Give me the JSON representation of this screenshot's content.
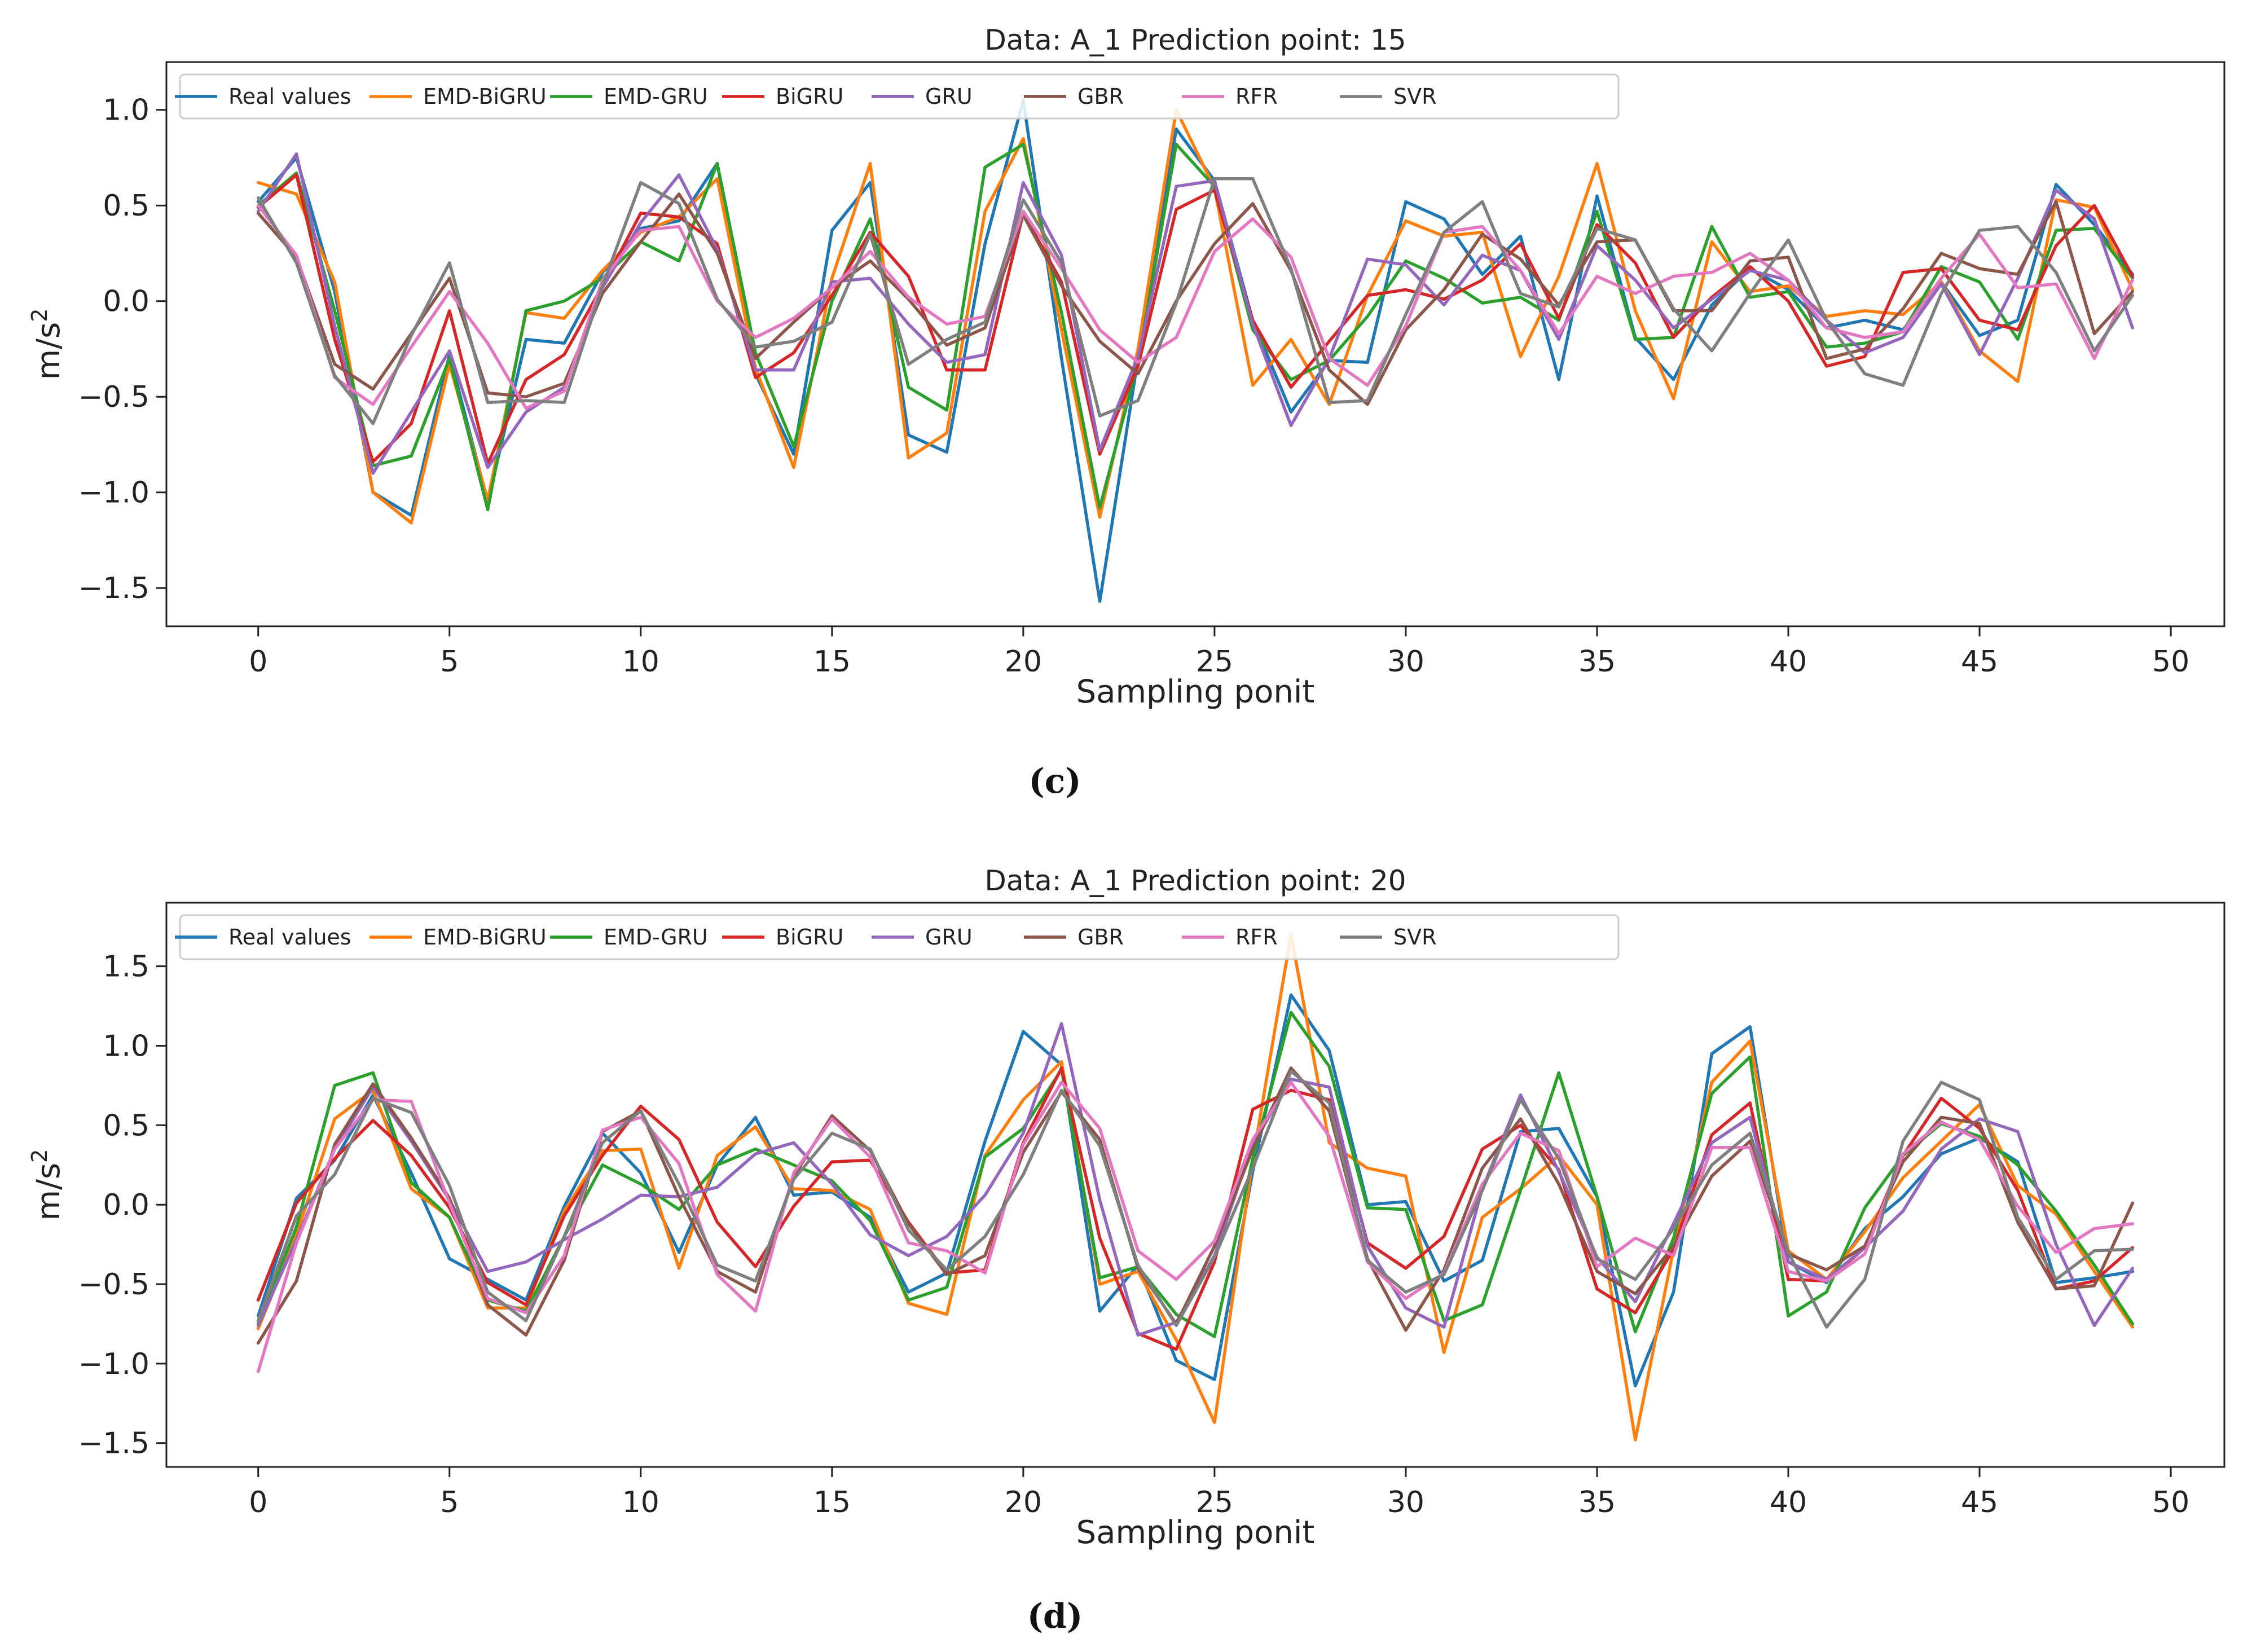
{
  "chart_data": [
    {
      "type": "line",
      "panel_label": "(c)",
      "title": "Data: A_1 Prediction point: 15",
      "xlabel": "Sampling ponit",
      "ylabel_base": "m/s",
      "ylabel_sup": "2",
      "xlim": [
        -2.4,
        51.4
      ],
      "ylim": [
        -1.7,
        1.25
      ],
      "xticks": [
        0,
        5,
        10,
        15,
        20,
        25,
        30,
        35,
        40,
        45,
        50
      ],
      "yticks": [
        -1.5,
        -1.0,
        -0.5,
        0.0,
        0.5,
        1.0
      ],
      "ytick_labels": [
        "−1.5",
        "−1.0",
        "−0.5",
        "0.0",
        "0.5",
        "1.0"
      ],
      "legend_position": "top-left",
      "series": [
        {
          "name": "Real values",
          "color": "#1f77b4",
          "values": [
            0.52,
            0.75,
            0.05,
            -1.0,
            -1.12,
            -0.28,
            -1.05,
            -0.2,
            -0.22,
            0.15,
            0.38,
            0.42,
            0.72,
            -0.38,
            -0.8,
            0.37,
            0.62,
            -0.7,
            -0.79,
            0.3,
            1.05,
            -0.3,
            -1.57,
            -0.3,
            0.9,
            0.63,
            -0.1,
            -0.58,
            -0.31,
            -0.32,
            0.52,
            0.43,
            0.14,
            0.34,
            -0.41,
            0.55,
            -0.19,
            -0.41,
            -0.02,
            0.17,
            0.06,
            -0.14,
            -0.1,
            -0.15,
            0.1,
            -0.18,
            -0.1,
            0.61,
            0.4,
            0.14
          ]
        },
        {
          "name": "EMD-BiGRU",
          "color": "#ff7f0e",
          "values": [
            0.62,
            0.56,
            0.1,
            -1.0,
            -1.16,
            -0.33,
            -1.04,
            -0.06,
            -0.09,
            0.16,
            0.36,
            0.44,
            0.64,
            -0.35,
            -0.87,
            0.12,
            0.72,
            -0.82,
            -0.69,
            0.47,
            0.85,
            -0.15,
            -1.13,
            -0.25,
            1.0,
            0.59,
            -0.44,
            -0.2,
            -0.54,
            0.03,
            0.42,
            0.34,
            0.36,
            -0.29,
            0.13,
            0.72,
            -0.05,
            -0.51,
            0.31,
            0.05,
            0.08,
            -0.08,
            -0.05,
            -0.07,
            0.1,
            -0.26,
            -0.42,
            0.53,
            0.49,
            0.06
          ]
        },
        {
          "name": "EMD-GRU",
          "color": "#2ca02c",
          "values": [
            0.5,
            0.67,
            -0.05,
            -0.86,
            -0.81,
            -0.3,
            -1.09,
            -0.05,
            0.0,
            0.12,
            0.31,
            0.21,
            0.72,
            -0.27,
            -0.76,
            0.0,
            0.43,
            -0.45,
            -0.57,
            0.7,
            0.82,
            -0.06,
            -1.08,
            -0.32,
            0.82,
            0.6,
            -0.15,
            -0.41,
            -0.31,
            -0.08,
            0.21,
            0.12,
            -0.01,
            0.02,
            -0.1,
            0.47,
            -0.2,
            -0.19,
            0.39,
            0.02,
            0.05,
            -0.24,
            -0.22,
            -0.16,
            0.18,
            0.1,
            -0.2,
            0.37,
            0.38,
            0.12
          ]
        },
        {
          "name": "BiGRU",
          "color": "#d62728",
          "values": [
            0.49,
            0.66,
            -0.2,
            -0.84,
            -0.64,
            -0.05,
            -0.85,
            -0.41,
            -0.28,
            0.08,
            0.46,
            0.44,
            0.3,
            -0.4,
            -0.27,
            0.03,
            0.36,
            0.13,
            -0.36,
            -0.36,
            0.46,
            0.1,
            -0.8,
            -0.34,
            0.48,
            0.58,
            -0.1,
            -0.45,
            -0.21,
            0.03,
            0.06,
            0.01,
            0.11,
            0.3,
            -0.09,
            0.4,
            0.2,
            -0.19,
            0.02,
            0.18,
            0.0,
            -0.34,
            -0.29,
            0.15,
            0.17,
            -0.1,
            -0.15,
            0.29,
            0.5,
            0.13
          ]
        },
        {
          "name": "GRU",
          "color": "#9467bd",
          "values": [
            0.47,
            0.77,
            -0.13,
            -0.9,
            -0.58,
            -0.26,
            -0.87,
            -0.58,
            -0.45,
            0.07,
            0.41,
            0.66,
            0.27,
            -0.36,
            -0.36,
            0.1,
            0.12,
            -0.12,
            -0.32,
            -0.28,
            0.62,
            0.24,
            -0.78,
            -0.29,
            0.6,
            0.63,
            -0.12,
            -0.65,
            -0.3,
            0.22,
            0.19,
            -0.02,
            0.24,
            0.16,
            -0.2,
            0.29,
            0.11,
            -0.14,
            0.01,
            0.16,
            0.11,
            -0.1,
            -0.27,
            -0.19,
            0.09,
            -0.28,
            0.12,
            0.58,
            0.43,
            -0.14
          ]
        },
        {
          "name": "GBR",
          "color": "#8c564b",
          "values": [
            0.46,
            0.23,
            -0.33,
            -0.46,
            -0.17,
            0.12,
            -0.48,
            -0.5,
            -0.43,
            0.04,
            0.31,
            0.56,
            0.25,
            -0.3,
            -0.11,
            0.07,
            0.21,
            0.01,
            -0.23,
            -0.14,
            0.45,
            0.08,
            -0.21,
            -0.38,
            0.0,
            0.3,
            0.51,
            0.16,
            -0.36,
            -0.54,
            -0.15,
            0.06,
            0.35,
            0.22,
            -0.02,
            0.31,
            0.32,
            -0.05,
            -0.05,
            0.21,
            0.23,
            -0.3,
            -0.25,
            -0.04,
            0.25,
            0.17,
            0.14,
            0.52,
            -0.17,
            0.05
          ]
        },
        {
          "name": "RFR",
          "color": "#e377c2",
          "values": [
            0.5,
            0.24,
            -0.4,
            -0.54,
            -0.24,
            0.05,
            -0.22,
            -0.56,
            -0.47,
            0.11,
            0.37,
            0.39,
            0.0,
            -0.19,
            -0.09,
            0.07,
            0.26,
            0.02,
            -0.12,
            -0.08,
            0.47,
            0.17,
            -0.15,
            -0.32,
            -0.19,
            0.26,
            0.43,
            0.23,
            -0.3,
            -0.44,
            -0.13,
            0.36,
            0.39,
            0.16,
            -0.17,
            0.13,
            0.04,
            0.13,
            0.15,
            0.25,
            0.11,
            -0.14,
            -0.19,
            -0.16,
            0.12,
            0.35,
            0.07,
            0.09,
            -0.3,
            0.11
          ]
        },
        {
          "name": "SVR",
          "color": "#7f7f7f",
          "values": [
            0.54,
            0.2,
            -0.39,
            -0.64,
            -0.18,
            0.2,
            -0.53,
            -0.52,
            -0.53,
            0.08,
            0.62,
            0.51,
            0.01,
            -0.24,
            -0.21,
            -0.11,
            0.35,
            -0.33,
            -0.2,
            -0.11,
            0.53,
            0.2,
            -0.6,
            -0.52,
            -0.01,
            0.64,
            0.64,
            0.17,
            -0.53,
            -0.52,
            -0.07,
            0.36,
            0.52,
            0.04,
            -0.03,
            0.38,
            0.32,
            -0.04,
            -0.26,
            0.04,
            0.32,
            -0.1,
            -0.38,
            -0.44,
            0.04,
            0.37,
            0.39,
            0.15,
            -0.26,
            0.03
          ]
        }
      ]
    },
    {
      "type": "line",
      "panel_label": "(d)",
      "title": "Data: A_1 Prediction point: 20",
      "xlabel": "Sampling ponit",
      "ylabel_base": "m/s",
      "ylabel_sup": "2",
      "xlim": [
        -2.4,
        51.4
      ],
      "ylim": [
        -1.65,
        1.9
      ],
      "xticks": [
        0,
        5,
        10,
        15,
        20,
        25,
        30,
        35,
        40,
        45,
        50
      ],
      "yticks": [
        -1.5,
        -1.0,
        -0.5,
        0.0,
        0.5,
        1.0,
        1.5
      ],
      "ytick_labels": [
        "−1.5",
        "−1.0",
        "−0.5",
        "0.0",
        "0.5",
        "1.0",
        "1.5"
      ],
      "legend_position": "top-left",
      "series": [
        {
          "name": "Real values",
          "color": "#1f77b4",
          "values": [
            -0.7,
            0.04,
            0.28,
            0.69,
            0.2,
            -0.34,
            -0.47,
            -0.6,
            -0.01,
            0.45,
            0.2,
            -0.3,
            0.25,
            0.55,
            0.06,
            0.08,
            -0.08,
            -0.55,
            -0.43,
            0.4,
            1.09,
            0.88,
            -0.67,
            -0.38,
            -0.98,
            -1.1,
            0.21,
            1.32,
            0.97,
            0.0,
            0.02,
            -0.48,
            -0.35,
            0.46,
            0.48,
            0.05,
            -1.14,
            -0.55,
            0.95,
            1.12,
            -0.36,
            -0.49,
            -0.15,
            0.05,
            0.32,
            0.42,
            0.27,
            -0.49,
            -0.46,
            -0.42
          ]
        },
        {
          "name": "EMD-BiGRU",
          "color": "#ff7f0e",
          "values": [
            -0.78,
            -0.19,
            0.54,
            0.72,
            0.1,
            -0.08,
            -0.65,
            -0.65,
            -0.04,
            0.34,
            0.35,
            -0.4,
            0.31,
            0.49,
            0.1,
            0.09,
            -0.03,
            -0.62,
            -0.69,
            0.31,
            0.66,
            0.9,
            -0.5,
            -0.42,
            -0.85,
            -1.37,
            0.28,
            1.7,
            0.39,
            0.23,
            0.18,
            -0.93,
            -0.08,
            0.1,
            0.31,
            0.0,
            -1.48,
            -0.28,
            0.77,
            1.03,
            -0.29,
            -0.47,
            -0.17,
            0.17,
            0.4,
            0.63,
            0.12,
            -0.06,
            -0.42,
            -0.77
          ]
        },
        {
          "name": "EMD-GRU",
          "color": "#2ca02c",
          "values": [
            -0.75,
            -0.14,
            0.75,
            0.83,
            0.14,
            -0.08,
            -0.6,
            -0.67,
            -0.2,
            0.25,
            0.13,
            -0.03,
            0.25,
            0.35,
            0.25,
            0.15,
            -0.1,
            -0.6,
            -0.52,
            0.3,
            0.48,
            0.85,
            -0.46,
            -0.39,
            -0.69,
            -0.83,
            0.29,
            1.21,
            0.87,
            -0.02,
            -0.03,
            -0.73,
            -0.63,
            0.09,
            0.83,
            0.05,
            -0.8,
            -0.21,
            0.7,
            0.93,
            -0.7,
            -0.55,
            -0.02,
            0.31,
            0.51,
            0.43,
            0.25,
            -0.04,
            -0.38,
            -0.75
          ]
        },
        {
          "name": "BiGRU",
          "color": "#d62728",
          "values": [
            -0.6,
            0.01,
            0.29,
            0.53,
            0.31,
            -0.02,
            -0.49,
            -0.63,
            -0.07,
            0.31,
            0.62,
            0.41,
            -0.11,
            -0.39,
            -0.01,
            0.27,
            0.28,
            -0.11,
            -0.43,
            -0.41,
            0.39,
            0.86,
            -0.21,
            -0.81,
            -0.91,
            -0.36,
            0.6,
            0.72,
            0.66,
            -0.24,
            -0.4,
            -0.2,
            0.35,
            0.5,
            0.22,
            -0.53,
            -0.68,
            -0.28,
            0.44,
            0.64,
            -0.47,
            -0.48,
            -0.27,
            0.31,
            0.67,
            0.48,
            0.09,
            -0.53,
            -0.48,
            -0.27
          ]
        },
        {
          "name": "GRU",
          "color": "#9467bd",
          "values": [
            -0.76,
            -0.22,
            0.35,
            0.74,
            0.4,
            0.03,
            -0.42,
            -0.36,
            -0.22,
            -0.09,
            0.06,
            0.05,
            0.11,
            0.32,
            0.39,
            0.13,
            -0.19,
            -0.32,
            -0.2,
            0.06,
            0.45,
            1.14,
            0.03,
            -0.82,
            -0.74,
            -0.32,
            0.38,
            0.79,
            0.74,
            -0.26,
            -0.65,
            -0.77,
            0.1,
            0.69,
            0.21,
            -0.33,
            -0.61,
            -0.12,
            0.39,
            0.55,
            -0.36,
            -0.47,
            -0.27,
            -0.04,
            0.35,
            0.54,
            0.46,
            -0.25,
            -0.76,
            -0.4
          ]
        },
        {
          "name": "GBR",
          "color": "#8c564b",
          "values": [
            -0.87,
            -0.48,
            0.38,
            0.76,
            0.42,
            0.04,
            -0.63,
            -0.82,
            -0.35,
            0.46,
            0.59,
            0.05,
            -0.42,
            -0.55,
            0.18,
            0.56,
            0.34,
            -0.12,
            -0.44,
            -0.32,
            0.33,
            0.71,
            0.41,
            -0.4,
            -0.75,
            -0.26,
            0.35,
            0.86,
            0.59,
            -0.34,
            -0.79,
            -0.41,
            0.23,
            0.54,
            0.13,
            -0.42,
            -0.56,
            -0.26,
            0.18,
            0.4,
            -0.31,
            -0.41,
            -0.26,
            0.27,
            0.55,
            0.51,
            -0.11,
            -0.53,
            -0.51,
            0.01
          ]
        },
        {
          "name": "RFR",
          "color": "#e377c2",
          "values": [
            -1.05,
            -0.24,
            0.35,
            0.66,
            0.65,
            0.01,
            -0.59,
            -0.68,
            -0.32,
            0.47,
            0.55,
            0.26,
            -0.44,
            -0.67,
            0.2,
            0.54,
            0.3,
            -0.24,
            -0.29,
            -0.43,
            0.38,
            0.77,
            0.48,
            -0.29,
            -0.47,
            -0.23,
            0.41,
            0.77,
            0.43,
            -0.36,
            -0.59,
            -0.43,
            0.13,
            0.45,
            0.34,
            -0.39,
            -0.21,
            -0.32,
            0.36,
            0.36,
            -0.42,
            -0.48,
            -0.31,
            0.32,
            0.52,
            0.41,
            -0.01,
            -0.3,
            -0.15,
            -0.12
          ]
        },
        {
          "name": "SVR",
          "color": "#7f7f7f",
          "values": [
            -0.73,
            -0.07,
            0.19,
            0.67,
            0.58,
            0.12,
            -0.55,
            -0.73,
            -0.2,
            0.39,
            0.59,
            0.13,
            -0.38,
            -0.48,
            0.16,
            0.45,
            0.35,
            -0.16,
            -0.41,
            -0.2,
            0.19,
            0.72,
            0.37,
            -0.38,
            -0.76,
            -0.33,
            0.23,
            0.84,
            0.64,
            -0.35,
            -0.55,
            -0.44,
            0.09,
            0.66,
            0.29,
            -0.34,
            -0.47,
            -0.15,
            0.25,
            0.45,
            -0.3,
            -0.77,
            -0.47,
            0.4,
            0.77,
            0.66,
            -0.08,
            -0.47,
            -0.29,
            -0.28
          ]
        }
      ]
    }
  ]
}
